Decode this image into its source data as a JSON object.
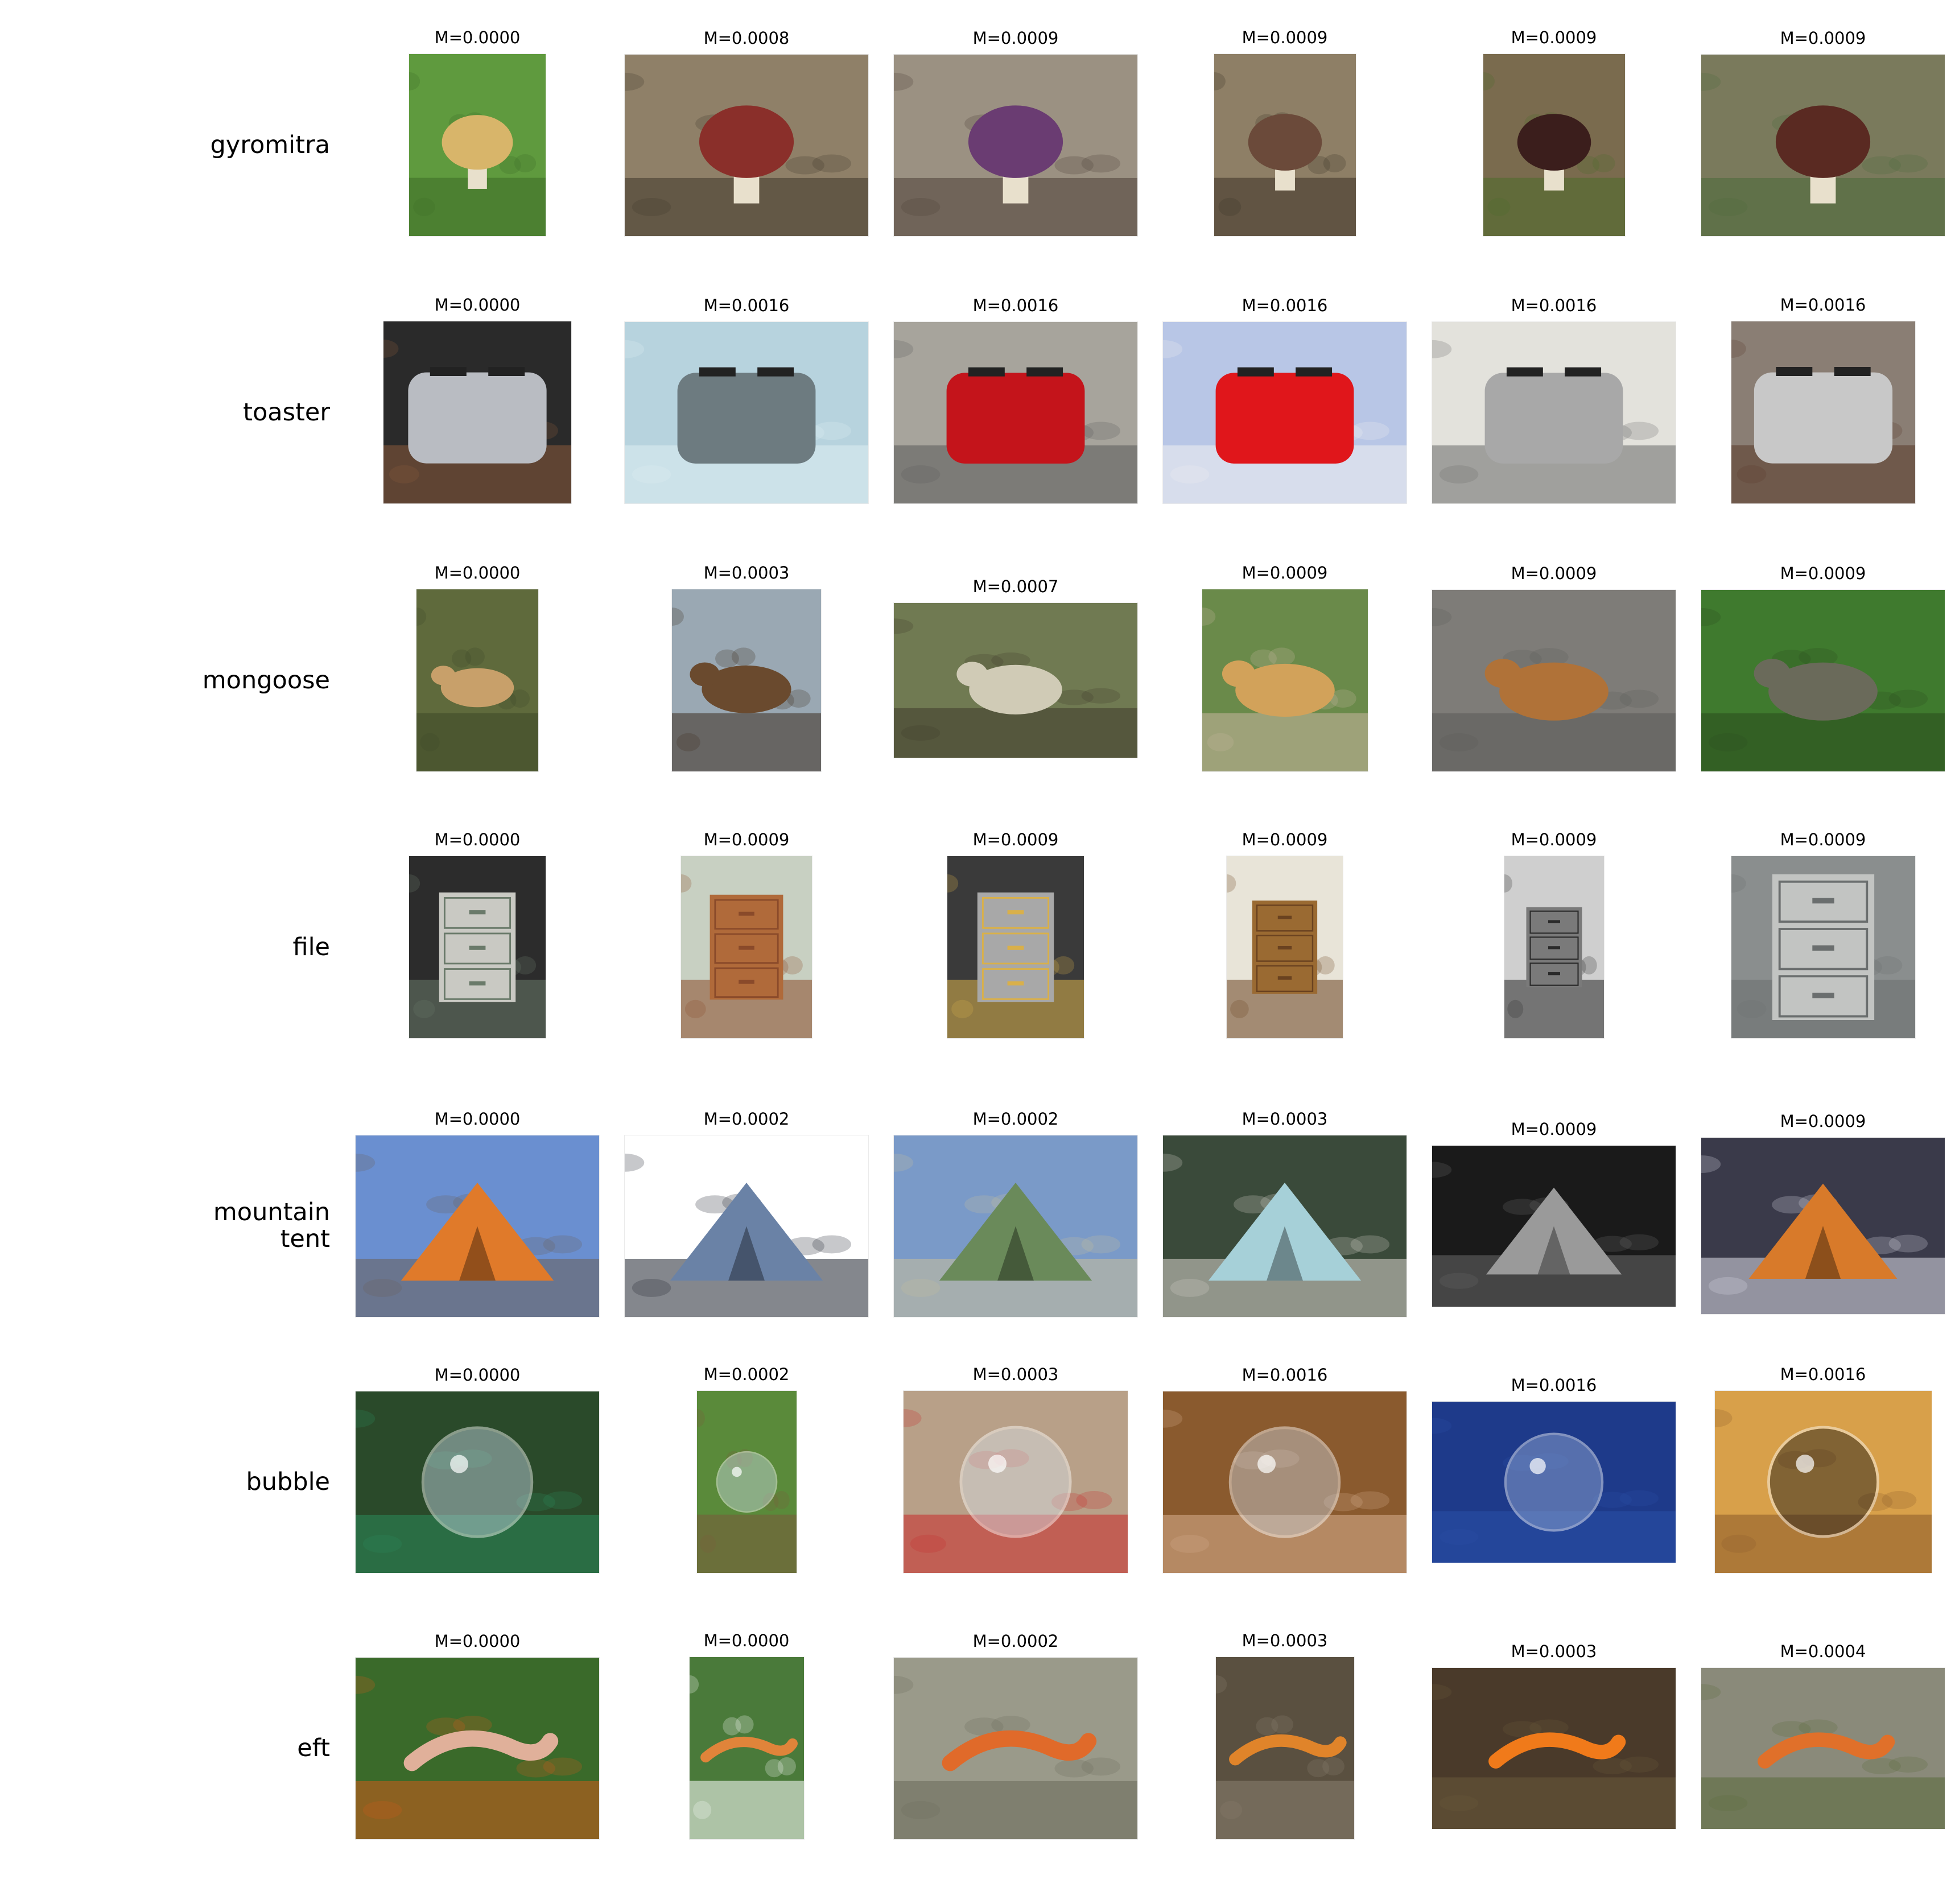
{
  "figure": {
    "rows": [
      {
        "label": "gyromitra",
        "images": [
          {
            "caption": "M=0.0000",
            "scene": "grass",
            "subject": "mushroom",
            "colors": [
              "#5f9a3e",
              "#d8b56a",
              "#3d6b27"
            ]
          },
          {
            "caption": "M=0.0008",
            "scene": "ground",
            "subject": "mushroom",
            "colors": [
              "#8f8068",
              "#8a2f2a",
              "#3f362a"
            ]
          },
          {
            "caption": "M=0.0009",
            "scene": "leaves",
            "subject": "mushroom",
            "colors": [
              "#9b9182",
              "#6a3c72",
              "#4c3f38"
            ]
          },
          {
            "caption": "M=0.0009",
            "scene": "ground",
            "subject": "mushroom",
            "colors": [
              "#8e7f66",
              "#6b4a3a",
              "#3c3226"
            ]
          },
          {
            "caption": "M=0.0009",
            "scene": "ground",
            "subject": "mushroom",
            "colors": [
              "#7a6b4e",
              "#3b1e1c",
              "#4d6b2a"
            ]
          },
          {
            "caption": "M=0.0009",
            "scene": "leaves",
            "subject": "mushroom",
            "colors": [
              "#7a7a5c",
              "#5a2a22",
              "#4a6a3a"
            ]
          }
        ]
      },
      {
        "label": "toaster",
        "images": [
          {
            "caption": "M=0.0000",
            "scene": "dark",
            "subject": "toaster",
            "colors": [
              "#2a2a2a",
              "#b9bcc2",
              "#8a5a3a"
            ]
          },
          {
            "caption": "M=0.0016",
            "scene": "light",
            "subject": "toaster",
            "colors": [
              "#b7d3de",
              "#6d7b80",
              "#dfeef3"
            ]
          },
          {
            "caption": "M=0.0016",
            "scene": "kitchen",
            "subject": "toaster",
            "colors": [
              "#a7a49c",
              "#c4141b",
              "#5a5a5a"
            ]
          },
          {
            "caption": "M=0.0016",
            "scene": "light",
            "subject": "toaster",
            "colors": [
              "#b8c6e6",
              "#e0161b",
              "#f0f0f0"
            ]
          },
          {
            "caption": "M=0.0016",
            "scene": "kitchen",
            "subject": "toaster",
            "colors": [
              "#e3e2dc",
              "#a8a8a8",
              "#6a6a6a"
            ]
          },
          {
            "caption": "M=0.0016",
            "scene": "studio",
            "subject": "toaster",
            "colors": [
              "#8a7e74",
              "#c8c8c8",
              "#5a3a2a"
            ]
          }
        ]
      },
      {
        "label": "mongoose",
        "images": [
          {
            "caption": "M=0.0000",
            "scene": "blur",
            "subject": "animal",
            "colors": [
              "#5f6a3c",
              "#c8a06a",
              "#3d4726"
            ]
          },
          {
            "caption": "M=0.0003",
            "scene": "rocks",
            "subject": "animal",
            "colors": [
              "#9aa8b3",
              "#6a4a2e",
              "#3e2e20"
            ]
          },
          {
            "caption": "M=0.0007",
            "scene": "debris",
            "subject": "animal",
            "colors": [
              "#707a52",
              "#d0cbb6",
              "#3f3a2c"
            ]
          },
          {
            "caption": "M=0.0009",
            "scene": "garden",
            "subject": "animal",
            "colors": [
              "#6a8a4a",
              "#d2a25a",
              "#c9b7a0"
            ]
          },
          {
            "caption": "M=0.0009",
            "scene": "ground",
            "subject": "animal",
            "colors": [
              "#7e7c78",
              "#b07238",
              "#5a5a58"
            ]
          },
          {
            "caption": "M=0.0009",
            "scene": "grass",
            "subject": "animal",
            "colors": [
              "#3f7a2e",
              "#6a6a5a",
              "#2a4a1e"
            ]
          }
        ]
      },
      {
        "label": "file",
        "images": [
          {
            "caption": "M=0.0000",
            "scene": "office",
            "subject": "cabinet",
            "colors": [
              "#2c2c2c",
              "#c9c9c3",
              "#6a7a6a"
            ]
          },
          {
            "caption": "M=0.0009",
            "scene": "room",
            "subject": "cabinet",
            "colors": [
              "#c8d0c2",
              "#b06a3a",
              "#8a4a2a"
            ]
          },
          {
            "caption": "M=0.0009",
            "scene": "office",
            "subject": "cabinet",
            "colors": [
              "#3a3a3a",
              "#a8a8a8",
              "#d9b04a"
            ]
          },
          {
            "caption": "M=0.0009",
            "scene": "room",
            "subject": "cabinet",
            "colors": [
              "#e8e4d8",
              "#9a6a32",
              "#6a4220"
            ]
          },
          {
            "caption": "M=0.0009",
            "scene": "mono",
            "subject": "cabinet",
            "colors": [
              "#cfcfcf",
              "#7a7a7a",
              "#2a2a2a"
            ]
          },
          {
            "caption": "M=0.0009",
            "scene": "room",
            "subject": "cabinet",
            "colors": [
              "#8a8e8e",
              "#c2c4c2",
              "#6a6e6e"
            ]
          }
        ]
      },
      {
        "label": "mountain\ntent",
        "images": [
          {
            "caption": "M=0.0000",
            "scene": "mountains",
            "subject": "tent",
            "colors": [
              "#6a8fd0",
              "#e07a2a",
              "#6a6058"
            ]
          },
          {
            "caption": "M=0.0002",
            "scene": "white",
            "subject": "tent",
            "colors": [
              "#ffffff",
              "#6a82a6",
              "#1f2430"
            ]
          },
          {
            "caption": "M=0.0002",
            "scene": "field",
            "subject": "tent",
            "colors": [
              "#7a9ac8",
              "#6a8a5a",
              "#c8c09a"
            ]
          },
          {
            "caption": "M=0.0003",
            "scene": "forest",
            "subject": "tent",
            "colors": [
              "#3a4a3a",
              "#a6d0d8",
              "#d8d4cc"
            ]
          },
          {
            "caption": "M=0.0009",
            "scene": "mono",
            "subject": "tent",
            "colors": [
              "#1a1a1a",
              "#9a9a9a",
              "#6a6a6a"
            ]
          },
          {
            "caption": "M=0.0009",
            "scene": "snow",
            "subject": "tent",
            "colors": [
              "#3a3a4a",
              "#d87a2a",
              "#dcdce8"
            ]
          }
        ]
      },
      {
        "label": "bubble",
        "images": [
          {
            "caption": "M=0.0000",
            "scene": "forest",
            "subject": "bubble",
            "colors": [
              "#2a4a2a",
              "#c8d8e8",
              "#2a8a5a"
            ]
          },
          {
            "caption": "M=0.0002",
            "scene": "park",
            "subject": "bubble",
            "colors": [
              "#5a8a3a",
              "#c8d8e0",
              "#7a5a3a"
            ]
          },
          {
            "caption": "M=0.0003",
            "scene": "blur",
            "subject": "bubble",
            "colors": [
              "#b8a088",
              "#d8e0e8",
              "#c82a2a"
            ]
          },
          {
            "caption": "M=0.0016",
            "scene": "room",
            "subject": "bubble",
            "colors": [
              "#8a5a2e",
              "#c8d0d8",
              "#d8b090"
            ]
          },
          {
            "caption": "M=0.0016",
            "scene": "blue",
            "subject": "bubble",
            "colors": [
              "#1e3a8a",
              "#9ab0d8",
              "#2a50a8"
            ]
          },
          {
            "caption": "M=0.0016",
            "scene": "room",
            "subject": "bubble",
            "colors": [
              "#d8a04a",
              "#1a1a1a",
              "#8a5a2a"
            ]
          }
        ]
      },
      {
        "label": "eft",
        "images": [
          {
            "caption": "M=0.0000",
            "scene": "hand",
            "subject": "salamander",
            "colors": [
              "#3a6a2a",
              "#e0b09a",
              "#d05a1a"
            ]
          },
          {
            "caption": "M=0.0000",
            "scene": "plants",
            "subject": "salamander",
            "colors": [
              "#4a7a3a",
              "#e0843a",
              "#ffffff"
            ]
          },
          {
            "caption": "M=0.0002",
            "scene": "rock",
            "subject": "salamander",
            "colors": [
              "#9a9a8a",
              "#e06a2a",
              "#6a6a5a"
            ]
          },
          {
            "caption": "M=0.0003",
            "scene": "wood",
            "subject": "salamander",
            "colors": [
              "#5a5040",
              "#e0842a",
              "#8a8070"
            ]
          },
          {
            "caption": "M=0.0003",
            "scene": "leaves",
            "subject": "salamander",
            "colors": [
              "#4a3a2a",
              "#f07a1a",
              "#6a5a3a"
            ]
          },
          {
            "caption": "M=0.0004",
            "scene": "rock",
            "subject": "salamander",
            "colors": [
              "#8a8a7a",
              "#e0702a",
              "#5a6a3a"
            ]
          }
        ]
      }
    ]
  }
}
